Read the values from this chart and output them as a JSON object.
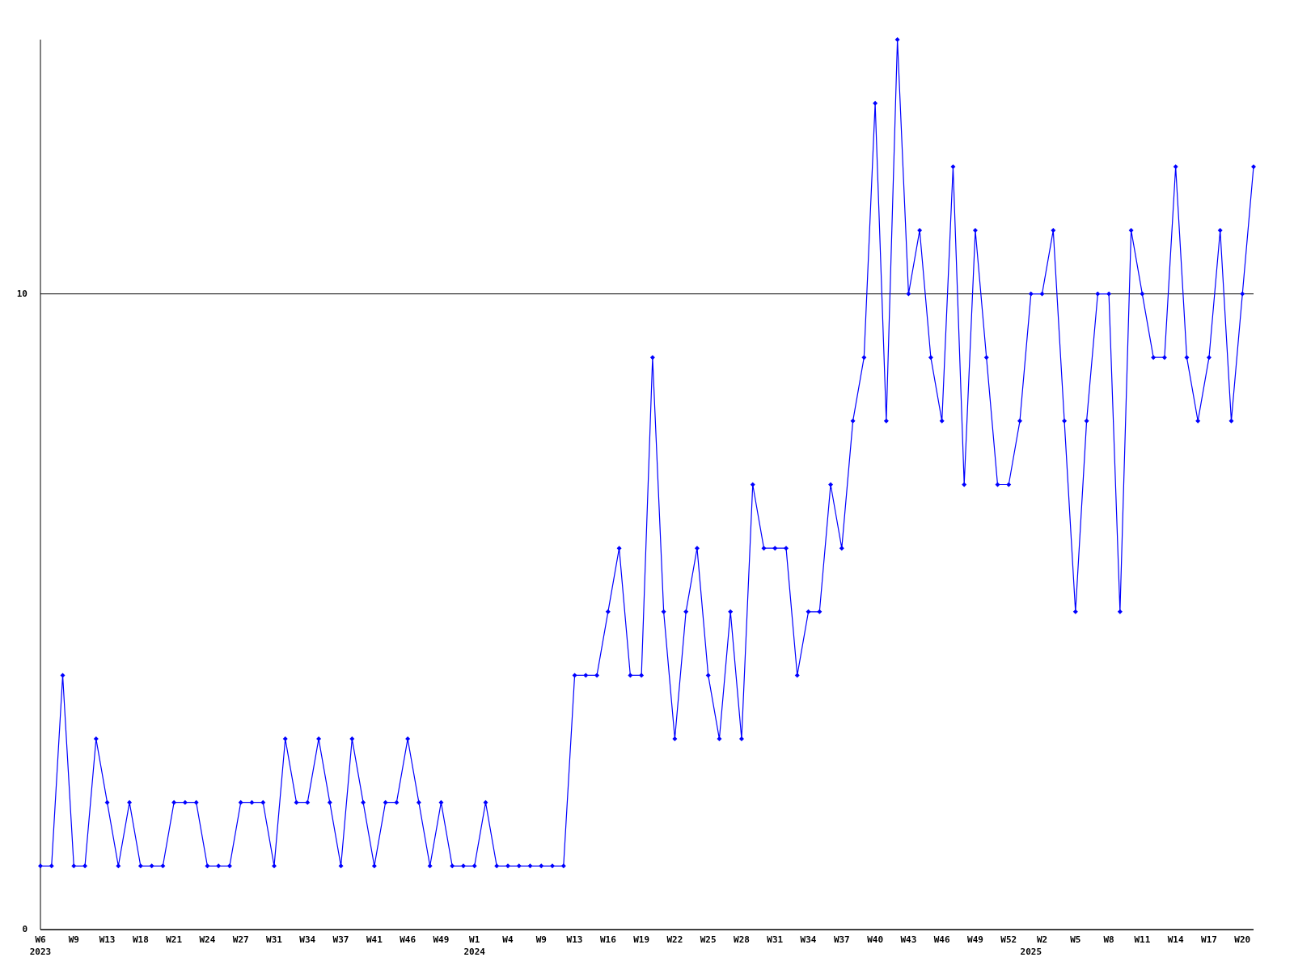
{
  "chart_data": {
    "type": "line",
    "categories": [
      "W6\n2023",
      null,
      null,
      "W9",
      null,
      null,
      "W13",
      null,
      null,
      "W18",
      null,
      null,
      "W21",
      null,
      null,
      "W24",
      null,
      null,
      "W27",
      null,
      null,
      "W31",
      null,
      null,
      "W34",
      null,
      null,
      "W37",
      null,
      null,
      "W41",
      null,
      null,
      "W46",
      null,
      null,
      "W49",
      null,
      null,
      "W1\n2024",
      null,
      null,
      "W4",
      null,
      null,
      "W9",
      null,
      null,
      "W13",
      null,
      null,
      "W16",
      null,
      null,
      "W19",
      null,
      null,
      "W22",
      null,
      null,
      "W25",
      null,
      null,
      "W28",
      null,
      null,
      "W31",
      null,
      null,
      "W34",
      null,
      null,
      "W37",
      null,
      null,
      "W40",
      null,
      null,
      "W43",
      null,
      null,
      "W46",
      null,
      null,
      "W49",
      null,
      null,
      "W52",
      null,
      "\n2025",
      "W2",
      null,
      null,
      "W5",
      null,
      null,
      "W8",
      null,
      null,
      "W11",
      null,
      null,
      "W14",
      null,
      null,
      "W17",
      null,
      null,
      "W20",
      null
    ],
    "series": [
      {
        "color": "#0000ff",
        "values": [
          1,
          1,
          4,
          1,
          1,
          3,
          2,
          1,
          2,
          1,
          1,
          1,
          2,
          2,
          2,
          1,
          1,
          1,
          2,
          2,
          2,
          1,
          3,
          2,
          2,
          3,
          2,
          1,
          3,
          2,
          1,
          2,
          2,
          3,
          2,
          1,
          2,
          1,
          1,
          1,
          2,
          1,
          1,
          1,
          1,
          1,
          1,
          1,
          4,
          4,
          4,
          5,
          6,
          4,
          4,
          9,
          5,
          3,
          5,
          6,
          4,
          3,
          5,
          3,
          7,
          6,
          6,
          6,
          4,
          5,
          5,
          7,
          6,
          8,
          9,
          13,
          8,
          14,
          10,
          11,
          9,
          8,
          12,
          7,
          11,
          9,
          7,
          7,
          8,
          10,
          10,
          11,
          8,
          5,
          8,
          10,
          10,
          5,
          11,
          10,
          9,
          9,
          12,
          9,
          8,
          9,
          11,
          8,
          10,
          12
        ]
      }
    ],
    "ylim": [
      0,
      14
    ],
    "yticks": [
      0,
      10
    ],
    "grid": "y",
    "marker": "diamond",
    "line_style": "solid"
  }
}
